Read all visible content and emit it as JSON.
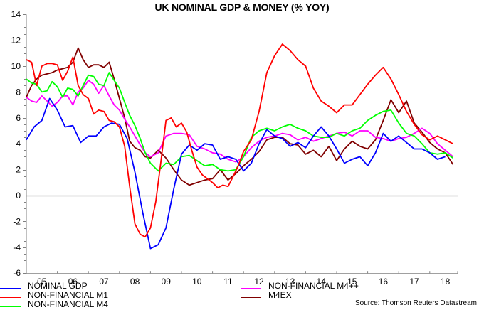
{
  "chart_data": {
    "type": "line",
    "title": "UK NOMINAL GDP & MONEY (% YOY)",
    "xlabel": "",
    "ylabel": "",
    "ylim": [
      -6,
      14
    ],
    "y_ticks": [
      14,
      12,
      10,
      8,
      6,
      4,
      2,
      0,
      -2,
      -4,
      -6
    ],
    "x_tick_labels": [
      "05",
      "06",
      "07",
      "08",
      "09",
      "10",
      "11",
      "12",
      "13",
      "14",
      "15",
      "16",
      "17",
      "18"
    ],
    "xlim": [
      2005.0,
      2018.85
    ],
    "grid": false,
    "zero_line": true,
    "legend_position": "bottom",
    "source": "Source: Thomson Reuters Datastream",
    "series": [
      {
        "name": "NOMINAL GDP",
        "color": "#0000ff",
        "x": [
          2005.0,
          2005.25,
          2005.5,
          2005.75,
          2006.0,
          2006.25,
          2006.5,
          2006.75,
          2007.0,
          2007.25,
          2007.5,
          2007.75,
          2008.0,
          2008.25,
          2008.5,
          2008.75,
          2009.0,
          2009.25,
          2009.5,
          2009.75,
          2010.0,
          2010.25,
          2010.5,
          2010.75,
          2011.0,
          2011.25,
          2011.5,
          2011.75,
          2012.0,
          2012.25,
          2012.5,
          2012.75,
          2013.0,
          2013.25,
          2013.5,
          2013.75,
          2014.0,
          2014.25,
          2014.5,
          2014.75,
          2015.0,
          2015.25,
          2015.5,
          2015.75,
          2016.0,
          2016.25,
          2016.5,
          2016.75,
          2017.0,
          2017.25,
          2017.5,
          2017.75,
          2018.0,
          2018.25,
          2018.5
        ],
        "values": [
          4.3,
          5.3,
          5.8,
          7.5,
          6.6,
          5.3,
          5.4,
          4.1,
          4.6,
          4.6,
          5.3,
          5.6,
          5.5,
          4.4,
          1.8,
          -1.3,
          -4.1,
          -3.8,
          -2.5,
          0.5,
          3.2,
          3.9,
          3.5,
          4.0,
          3.9,
          2.8,
          3.0,
          2.8,
          1.9,
          2.5,
          4.0,
          5.1,
          4.6,
          4.4,
          3.8,
          4.1,
          3.7,
          4.6,
          5.3,
          4.6,
          3.6,
          2.5,
          2.8,
          3.0,
          2.3,
          3.3,
          4.8,
          4.2,
          4.6,
          4.1,
          3.6,
          3.6,
          3.3,
          2.8,
          3.0
        ]
      },
      {
        "name": "NON-FINANCIAL M1",
        "color": "#ff0000",
        "x": [
          2005.0,
          2005.17,
          2005.33,
          2005.5,
          2005.67,
          2005.83,
          2006.0,
          2006.17,
          2006.33,
          2006.5,
          2006.67,
          2006.83,
          2007.0,
          2007.17,
          2007.33,
          2007.5,
          2007.67,
          2007.83,
          2008.0,
          2008.17,
          2008.33,
          2008.5,
          2008.67,
          2008.83,
          2009.0,
          2009.17,
          2009.33,
          2009.5,
          2009.67,
          2009.83,
          2010.0,
          2010.17,
          2010.33,
          2010.5,
          2010.67,
          2010.83,
          2011.0,
          2011.17,
          2011.33,
          2011.5,
          2011.67,
          2011.83,
          2012.0,
          2012.25,
          2012.5,
          2012.75,
          2013.0,
          2013.25,
          2013.5,
          2013.75,
          2014.0,
          2014.25,
          2014.5,
          2014.75,
          2015.0,
          2015.25,
          2015.5,
          2015.75,
          2016.0,
          2016.25,
          2016.5,
          2016.75,
          2017.0,
          2017.25,
          2017.5,
          2017.75,
          2018.0,
          2018.25,
          2018.5,
          2018.75
        ],
        "values": [
          10.5,
          10.3,
          8.5,
          10.0,
          10.2,
          10.2,
          10.1,
          8.9,
          9.6,
          10.7,
          8.5,
          7.8,
          7.5,
          6.3,
          6.6,
          6.5,
          5.8,
          5.7,
          5.3,
          3.8,
          0.7,
          -2.2,
          -3.0,
          -3.2,
          -2.5,
          -0.5,
          2.5,
          5.8,
          6.0,
          5.3,
          5.6,
          4.9,
          3.5,
          2.2,
          1.6,
          1.3,
          1.0,
          0.6,
          0.8,
          0.7,
          1.5,
          2.3,
          3.4,
          4.3,
          6.5,
          9.5,
          10.8,
          11.7,
          11.2,
          10.5,
          10.0,
          8.3,
          7.3,
          6.9,
          6.4,
          7.0,
          7.0,
          7.8,
          8.6,
          9.3,
          9.9,
          9.0,
          7.8,
          6.5,
          5.5,
          4.7,
          4.3,
          4.6,
          4.3,
          4.0
        ]
      },
      {
        "name": "NON-FINANCIAL M4",
        "color": "#00ff00",
        "x": [
          2005.0,
          2005.17,
          2005.33,
          2005.5,
          2005.67,
          2005.83,
          2006.0,
          2006.17,
          2006.33,
          2006.5,
          2006.67,
          2006.83,
          2007.0,
          2007.17,
          2007.33,
          2007.5,
          2007.67,
          2007.83,
          2008.0,
          2008.17,
          2008.33,
          2008.5,
          2008.67,
          2008.83,
          2009.0,
          2009.25,
          2009.5,
          2009.75,
          2010.0,
          2010.25,
          2010.5,
          2010.75,
          2011.0,
          2011.25,
          2011.5,
          2011.75,
          2012.0,
          2012.25,
          2012.5,
          2012.75,
          2013.0,
          2013.25,
          2013.5,
          2013.75,
          2014.0,
          2014.25,
          2014.5,
          2014.75,
          2015.0,
          2015.25,
          2015.5,
          2015.75,
          2016.0,
          2016.25,
          2016.5,
          2016.75,
          2017.0,
          2017.25,
          2017.5,
          2017.75,
          2018.0,
          2018.25,
          2018.5,
          2018.75
        ],
        "values": [
          9.0,
          8.7,
          8.6,
          8.0,
          8.1,
          8.8,
          8.4,
          7.6,
          8.3,
          8.2,
          7.7,
          8.5,
          9.3,
          9.2,
          8.6,
          8.5,
          9.5,
          8.9,
          8.3,
          7.2,
          6.2,
          5.4,
          4.4,
          3.3,
          2.5,
          1.9,
          2.5,
          2.4,
          3.0,
          3.1,
          2.7,
          2.3,
          2.4,
          2.0,
          1.9,
          2.0,
          3.0,
          4.5,
          5.0,
          5.2,
          5.0,
          5.3,
          5.5,
          5.2,
          5.0,
          4.6,
          4.5,
          4.5,
          4.8,
          4.6,
          5.0,
          5.2,
          5.8,
          6.2,
          6.5,
          6.6,
          5.6,
          4.8,
          4.6,
          4.0,
          3.3,
          3.2,
          3.3,
          2.9
        ]
      },
      {
        "name": "NON-FINANCIAL M4++",
        "color": "#ff00ff",
        "x": [
          2005.0,
          2005.17,
          2005.33,
          2005.5,
          2005.67,
          2005.83,
          2006.0,
          2006.17,
          2006.33,
          2006.5,
          2006.67,
          2006.83,
          2007.0,
          2007.17,
          2007.33,
          2007.5,
          2007.67,
          2007.83,
          2008.0,
          2008.17,
          2008.33,
          2008.5,
          2008.67,
          2008.83,
          2009.0,
          2009.25,
          2009.5,
          2009.75,
          2010.0,
          2010.25,
          2010.5,
          2010.75,
          2011.0,
          2011.25,
          2011.5,
          2011.75,
          2012.0,
          2012.25,
          2012.5,
          2012.75,
          2013.0,
          2013.25,
          2013.5,
          2013.75,
          2014.0,
          2014.25,
          2014.5,
          2014.75,
          2015.0,
          2015.25,
          2015.5,
          2015.75,
          2016.0,
          2016.25,
          2016.5,
          2016.75,
          2017.0,
          2017.25,
          2017.5,
          2017.75,
          2018.0,
          2018.25,
          2018.5,
          2018.75
        ],
        "values": [
          7.6,
          7.3,
          7.2,
          7.7,
          7.3,
          6.9,
          7.2,
          7.7,
          7.7,
          7.0,
          8.0,
          8.3,
          8.9,
          8.6,
          7.9,
          8.5,
          7.7,
          7.0,
          6.6,
          5.9,
          5.3,
          4.6,
          3.9,
          3.3,
          3.0,
          3.3,
          4.6,
          4.8,
          4.8,
          4.7,
          3.8,
          3.6,
          3.3,
          3.2,
          2.8,
          2.6,
          3.0,
          3.7,
          4.2,
          4.5,
          4.6,
          4.8,
          4.7,
          4.3,
          4.5,
          4.2,
          4.4,
          4.6,
          4.8,
          4.9,
          4.6,
          5.0,
          5.0,
          4.5,
          4.4,
          4.2,
          4.4,
          4.5,
          4.8,
          5.2,
          4.8,
          4.0,
          3.5,
          3.0
        ]
      },
      {
        "name": "M4EX",
        "color": "#800000",
        "x": [
          2005.0,
          2005.17,
          2005.33,
          2005.5,
          2005.67,
          2005.83,
          2006.0,
          2006.17,
          2006.33,
          2006.5,
          2006.67,
          2006.83,
          2007.0,
          2007.17,
          2007.33,
          2007.5,
          2007.67,
          2007.83,
          2008.0,
          2008.17,
          2008.33,
          2008.5,
          2008.67,
          2008.83,
          2009.0,
          2009.25,
          2009.5,
          2009.75,
          2010.0,
          2010.25,
          2010.5,
          2010.75,
          2011.0,
          2011.25,
          2011.5,
          2011.75,
          2012.0,
          2012.25,
          2012.5,
          2012.75,
          2013.0,
          2013.25,
          2013.5,
          2013.75,
          2014.0,
          2014.25,
          2014.5,
          2014.75,
          2015.0,
          2015.25,
          2015.5,
          2015.75,
          2016.0,
          2016.25,
          2016.5,
          2016.75,
          2017.0,
          2017.25,
          2017.5,
          2017.75,
          2018.0,
          2018.25,
          2018.5,
          2018.75
        ],
        "values": [
          7.6,
          8.5,
          9.0,
          9.3,
          9.4,
          9.5,
          9.7,
          9.8,
          9.9,
          10.3,
          11.4,
          10.5,
          9.9,
          10.1,
          10.1,
          9.9,
          10.3,
          9.0,
          7.5,
          6.0,
          4.2,
          3.7,
          3.5,
          3.0,
          2.9,
          3.5,
          2.9,
          2.0,
          1.2,
          0.8,
          1.0,
          1.2,
          1.3,
          2.0,
          1.2,
          1.7,
          2.3,
          2.8,
          3.4,
          4.3,
          4.5,
          4.5,
          4.0,
          3.9,
          3.2,
          3.5,
          3.0,
          3.8,
          2.7,
          3.6,
          4.2,
          3.8,
          3.6,
          4.3,
          5.8,
          7.4,
          6.4,
          7.3,
          5.6,
          4.9,
          4.1,
          3.6,
          3.3,
          2.4
        ]
      }
    ]
  }
}
